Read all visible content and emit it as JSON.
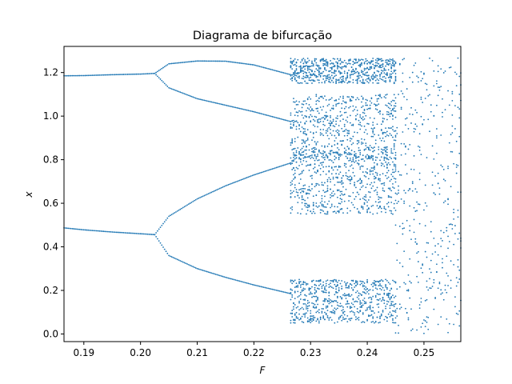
{
  "chart_data": {
    "type": "scatter",
    "title": "Diagrama de bifurcação",
    "xlabel": "F",
    "ylabel": "x",
    "xlim": [
      0.1865,
      0.2565
    ],
    "ylim": [
      -0.035,
      1.32
    ],
    "xticks": [
      0.19,
      0.2,
      0.21,
      0.22,
      0.23,
      0.24,
      0.25
    ],
    "xtick_labels": [
      "0.19",
      "0.20",
      "0.21",
      "0.22",
      "0.23",
      "0.24",
      "0.25"
    ],
    "yticks": [
      0.0,
      0.2,
      0.4,
      0.6,
      0.8,
      1.0,
      1.2
    ],
    "ytick_labels": [
      "0.0",
      "0.2",
      "0.4",
      "0.6",
      "0.8",
      "1.0",
      "1.2"
    ],
    "grid": false,
    "marker_color": "#1f77b4",
    "series": [
      {
        "name": "",
        "branches": [
          {
            "regime": "period-1",
            "x": [
              0.1865,
              0.19,
              0.195,
              0.2,
              0.2025
            ],
            "y": [
              1.185,
              1.186,
              1.19,
              1.193,
              1.196
            ]
          },
          {
            "regime": "period-1",
            "x": [
              0.1865,
              0.19,
              0.195,
              0.2,
              0.2025
            ],
            "y": [
              0.487,
              0.478,
              0.468,
              0.46,
              0.456
            ]
          },
          {
            "regime": "period-2",
            "x": [
              0.2025,
              0.205,
              0.21,
              0.215,
              0.22,
              0.2265
            ],
            "y": [
              1.196,
              1.24,
              1.253,
              1.252,
              1.235,
              1.19
            ]
          },
          {
            "regime": "period-2",
            "x": [
              0.2025,
              0.205,
              0.21,
              0.215,
              0.22,
              0.2265
            ],
            "y": [
              1.196,
              1.13,
              1.08,
              1.05,
              1.02,
              0.975
            ]
          },
          {
            "regime": "period-2",
            "x": [
              0.2025,
              0.205,
              0.21,
              0.215,
              0.22,
              0.2265
            ],
            "y": [
              0.456,
              0.54,
              0.62,
              0.68,
              0.73,
              0.785
            ]
          },
          {
            "regime": "period-2",
            "x": [
              0.2025,
              0.205,
              0.21,
              0.215,
              0.22,
              0.2265
            ],
            "y": [
              0.456,
              0.36,
              0.3,
              0.26,
              0.225,
              0.185
            ]
          }
        ],
        "chaotic_bands": [
          {
            "x_range": [
              0.2265,
              0.245
            ],
            "y_range": [
              1.15,
              1.265
            ]
          },
          {
            "x_range": [
              0.2265,
              0.245
            ],
            "y_range": [
              0.8,
              1.1
            ]
          },
          {
            "x_range": [
              0.2265,
              0.245
            ],
            "y_range": [
              0.55,
              0.85
            ]
          },
          {
            "x_range": [
              0.2265,
              0.245
            ],
            "y_range": [
              0.05,
              0.25
            ]
          },
          {
            "x_range": [
              0.245,
              0.2565
            ],
            "y_range": [
              0.0,
              1.27
            ]
          }
        ]
      }
    ]
  }
}
